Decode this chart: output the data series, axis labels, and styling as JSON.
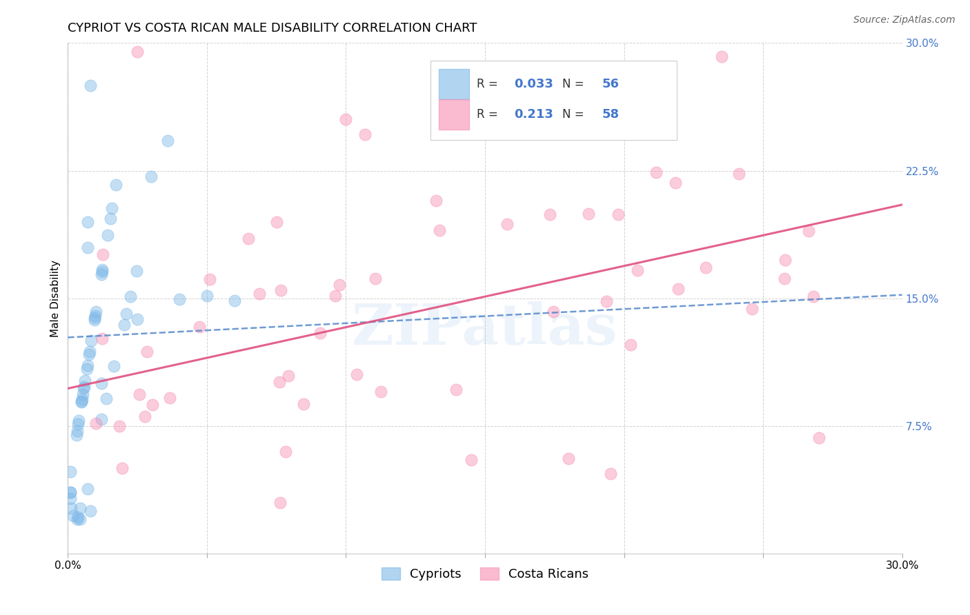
{
  "title": "CYPRIOT VS COSTA RICAN MALE DISABILITY CORRELATION CHART",
  "source": "Source: ZipAtlas.com",
  "ylabel": "Male Disability",
  "watermark": "ZIPatlas",
  "x_min": 0.0,
  "x_max": 0.3,
  "y_min": 0.0,
  "y_max": 0.3,
  "x_tick_positions": [
    0.0,
    0.05,
    0.1,
    0.15,
    0.2,
    0.25,
    0.3
  ],
  "x_tick_labels": [
    "0.0%",
    "",
    "",
    "",
    "",
    "",
    "30.0%"
  ],
  "y_tick_positions": [
    0.0,
    0.075,
    0.15,
    0.225,
    0.3
  ],
  "y_tick_labels_right": [
    "",
    "7.5%",
    "15.0%",
    "22.5%",
    "30.0%"
  ],
  "grid_color": "#cccccc",
  "background_color": "#ffffff",
  "cypriot_color": "#7db8e8",
  "costa_rican_color": "#f78fb3",
  "cypriot_line_color": "#5588cc",
  "costa_rican_line_color": "#e05080",
  "cypriot_R": 0.033,
  "cypriot_N": 56,
  "costa_rican_R": 0.213,
  "costa_rican_N": 58,
  "legend_label_cypriot": "Cypriots",
  "legend_label_costa_rican": "Costa Ricans",
  "cyp_line_y_start": 0.127,
  "cyp_line_y_end": 0.152,
  "cr_line_y_start": 0.097,
  "cr_line_y_end": 0.205,
  "title_fontsize": 13,
  "source_fontsize": 10,
  "axis_label_fontsize": 11,
  "tick_fontsize": 11,
  "legend_fontsize": 13,
  "right_tick_color": "#4477cc"
}
